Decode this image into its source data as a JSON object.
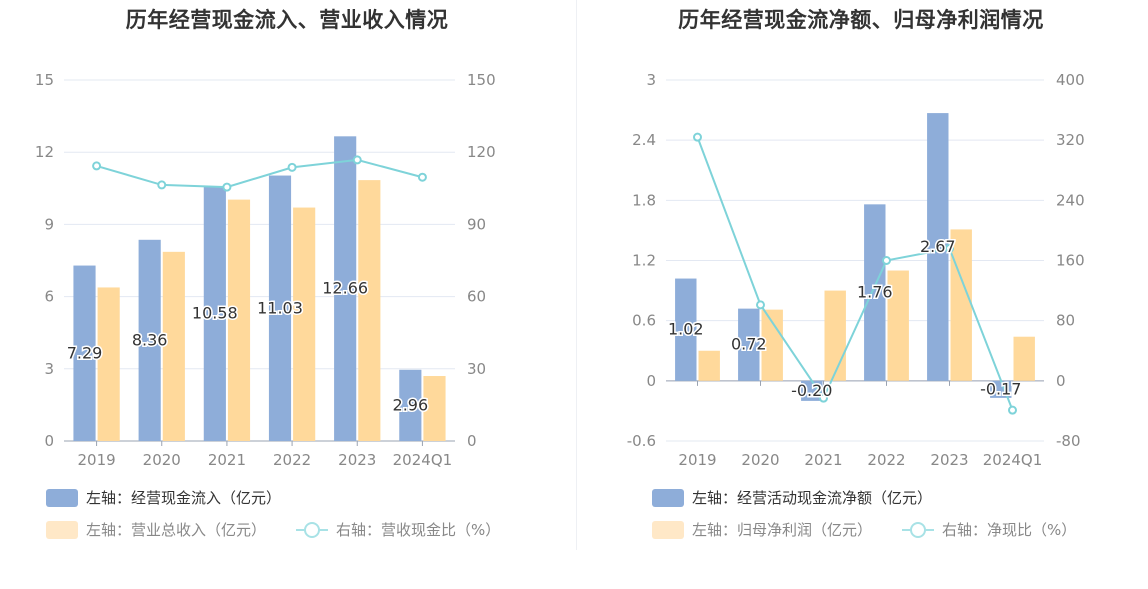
{
  "colors": {
    "bar_blue": "#8eadd9",
    "bar_orange": "#ffd99b",
    "line_teal": "#7ed3d9",
    "grid": "#e3e8f2",
    "axis_text": "#888888",
    "label_text": "#333333"
  },
  "chart_data": [
    {
      "type": "bar",
      "title": "历年经营现金流入、营业收入情况",
      "categories": [
        "2019",
        "2020",
        "2021",
        "2022",
        "2023",
        "2024Q1"
      ],
      "left_axis": {
        "ylim": [
          0,
          15
        ],
        "ticks": [
          "0",
          "3",
          "6",
          "9",
          "12",
          "15"
        ]
      },
      "right_axis": {
        "ylim": [
          0,
          150
        ],
        "ticks": [
          "0",
          "30",
          "60",
          "90",
          "120",
          "150"
        ]
      },
      "grid": true,
      "legend_position": "bottom-left",
      "series": [
        {
          "name": "左轴：经营现金流入（亿元）",
          "kind": "bar",
          "axis": "left",
          "color": "#8eadd9",
          "values": [
            7.29,
            8.36,
            10.58,
            11.03,
            12.66,
            2.96
          ],
          "labels": [
            "7.29",
            "8.36",
            "10.58",
            "11.03",
            "12.66",
            "2.96"
          ]
        },
        {
          "name": "左轴：营业总收入（亿元）",
          "kind": "bar",
          "axis": "left",
          "color": "#ffd99b",
          "values": [
            6.38,
            7.86,
            10.03,
            9.7,
            10.84,
            2.7
          ]
        },
        {
          "name": "右轴：营收现金比（%）",
          "kind": "line",
          "axis": "right",
          "color": "#7ed3d9",
          "values": [
            114.3,
            106.4,
            105.5,
            113.7,
            116.8,
            109.6
          ]
        }
      ]
    },
    {
      "type": "bar",
      "title": "历年经营现金流净额、归母净利润情况",
      "categories": [
        "2019",
        "2020",
        "2021",
        "2022",
        "2023",
        "2024Q1"
      ],
      "left_axis": {
        "ylim": [
          -0.6,
          3
        ],
        "ticks": [
          "-0.6",
          "0",
          "0.6",
          "1.2",
          "1.8",
          "2.4",
          "3"
        ]
      },
      "right_axis": {
        "ylim": [
          -80,
          400
        ],
        "ticks": [
          "-80",
          "0",
          "80",
          "160",
          "240",
          "320",
          "400"
        ]
      },
      "grid": true,
      "legend_position": "bottom-left",
      "series": [
        {
          "name": "左轴：经营活动现金流净额（亿元）",
          "kind": "bar",
          "axis": "left",
          "color": "#8eadd9",
          "values": [
            1.02,
            0.72,
            -0.2,
            1.76,
            2.67,
            -0.17
          ],
          "labels": [
            "1.02",
            "0.72",
            "-0.20",
            "1.76",
            "2.67",
            "-0.17"
          ]
        },
        {
          "name": "左轴：归母净利润（亿元）",
          "kind": "bar",
          "axis": "left",
          "color": "#ffd99b",
          "values": [
            0.3,
            0.71,
            0.9,
            1.1,
            1.51,
            0.44
          ]
        },
        {
          "name": "右轴：净现比（%）",
          "kind": "line",
          "axis": "right",
          "color": "#7ed3d9",
          "values": [
            324,
            101,
            -23,
            160,
            176,
            -39
          ]
        }
      ]
    }
  ]
}
